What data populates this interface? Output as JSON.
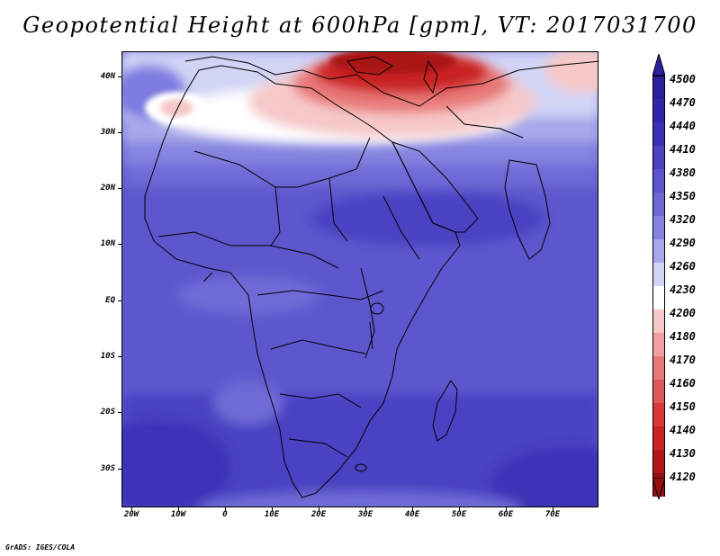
{
  "title": "Geopotential Height at 600hPa [gpm], VT: 2017031700",
  "credit": "GrADS: IGES/COLA",
  "map": {
    "lat_labels": [
      "40N",
      "30N",
      "20N",
      "10N",
      "EQ",
      "10S",
      "20S",
      "30S"
    ],
    "lon_labels": [
      "20W",
      "10W",
      "0",
      "10E",
      "20E",
      "30E",
      "40E",
      "50E",
      "60E",
      "70E"
    ]
  },
  "colorbar": {
    "labels": [
      "4500",
      "4470",
      "4440",
      "4410",
      "4380",
      "4350",
      "4320",
      "4290",
      "4260",
      "4230",
      "4200",
      "4180",
      "4170",
      "4160",
      "4150",
      "4140",
      "4130",
      "4120"
    ],
    "colors": [
      "#2b1f9c",
      "#2f25a8",
      "#3a30b4",
      "#4a42c0",
      "#5a55cc",
      "#6c69d6",
      "#8584e0",
      "#a7a8ea",
      "#d2d4f6",
      "#ffffff",
      "#f6c8c8",
      "#f0a0a0",
      "#e87878",
      "#e05858",
      "#d83838",
      "#c82424",
      "#b01818",
      "#941010"
    ]
  },
  "field_colors": {
    "deep_blue": "#3a2fb3",
    "mid_blue": "#5a55cc",
    "light_blue": "#7d7be0",
    "pale_blue": "#a7a8ea",
    "white": "#ffffff",
    "pink": "#f6c8c8",
    "red": "#d83838",
    "dark_red": "#a81212"
  }
}
